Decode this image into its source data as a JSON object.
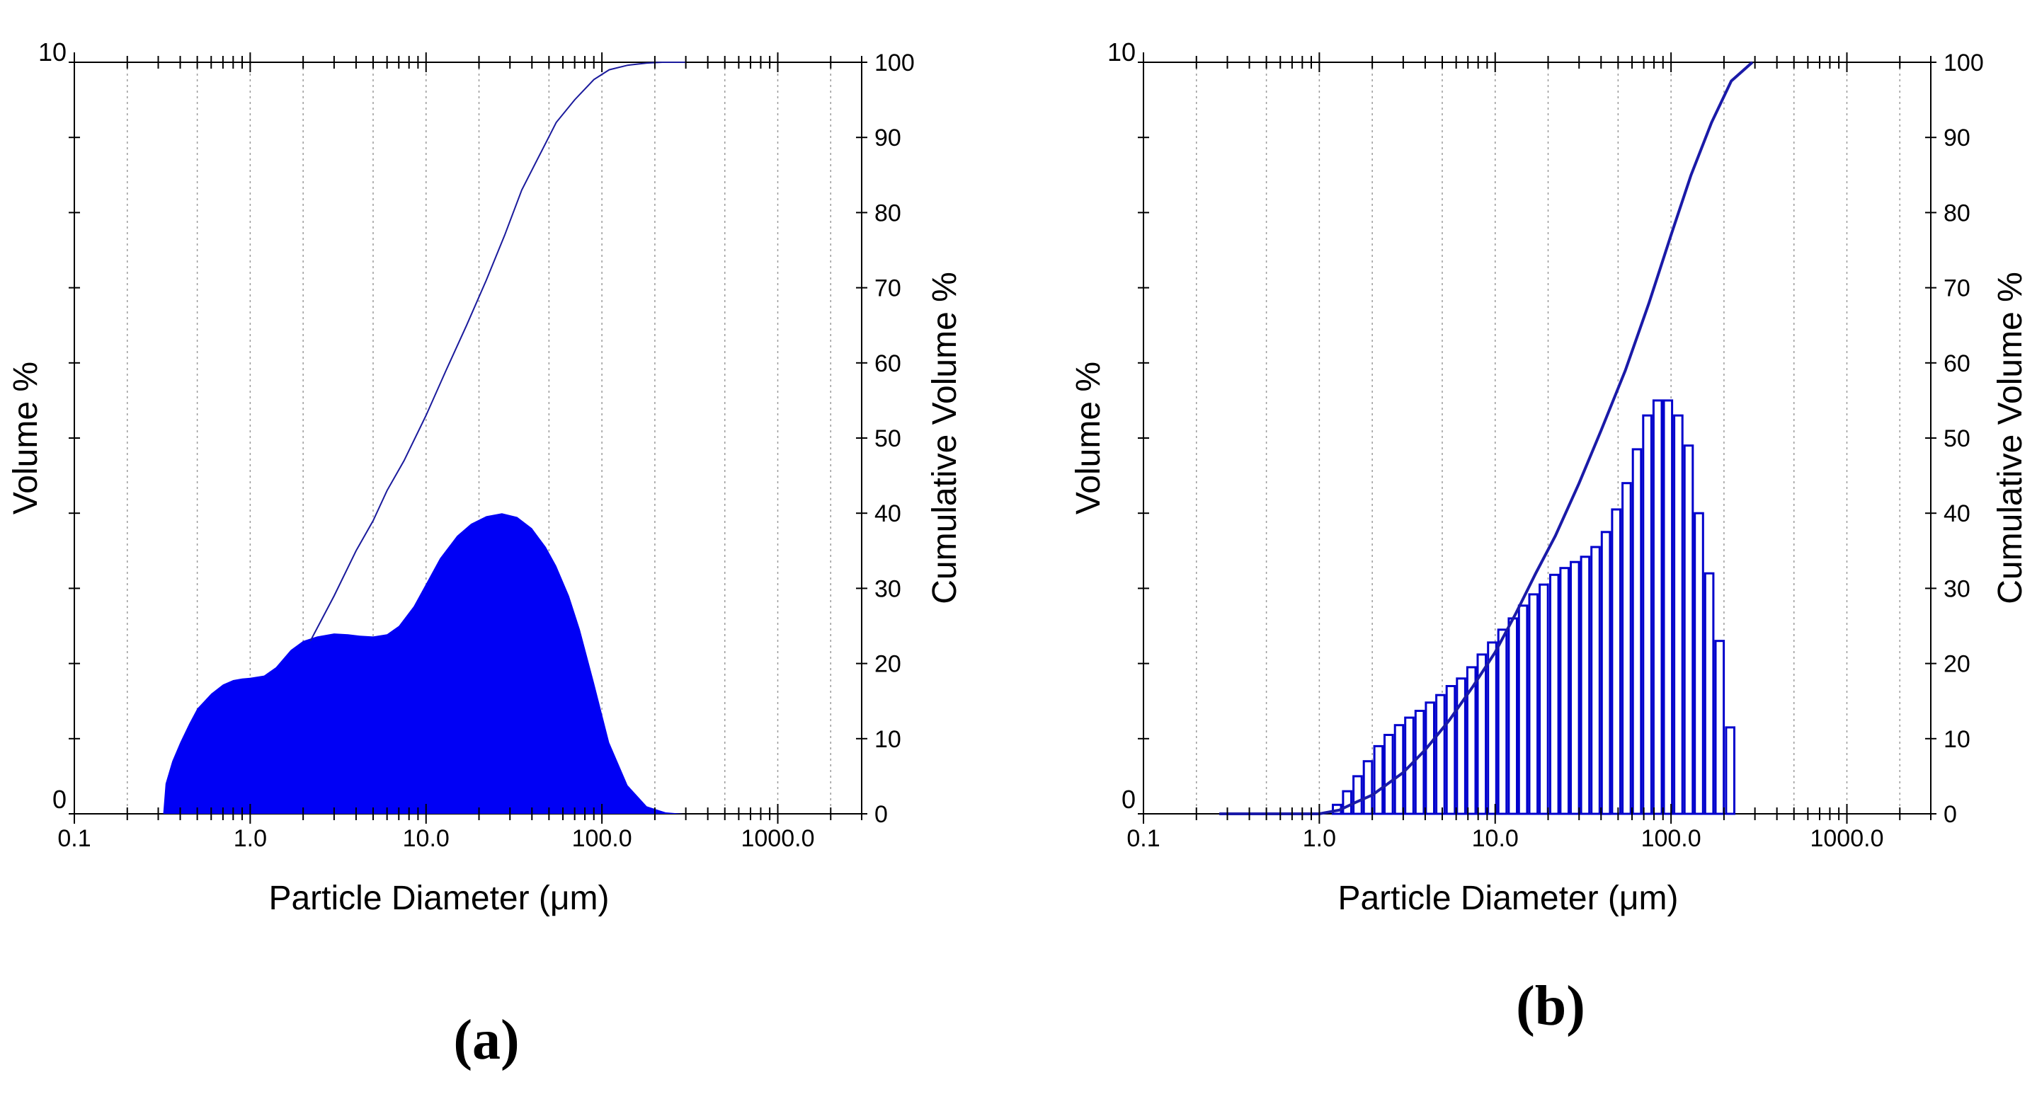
{
  "chart_data": [
    {
      "type": "area",
      "panel_label": "(a)",
      "xlabel": "Particle  Diameter (μm)",
      "ylabel": "Volume %",
      "y2label": "Cumulative Volume %",
      "x_scale": "log",
      "xlim": [
        0.1,
        3000
      ],
      "ylim": [
        0,
        10
      ],
      "y2lim": [
        0,
        100
      ],
      "x_ticklabels": [
        "0.1",
        "1.0",
        "10.0",
        "100.0",
        "1000.0"
      ],
      "y_ticklabels": [
        "0",
        "10"
      ],
      "y2_ticklabels": [
        "0",
        "10",
        "20",
        "30",
        "40",
        "50",
        "60",
        "70",
        "80",
        "90",
        "100"
      ],
      "grid": "vertical dotted",
      "colors": {
        "fill": "#0000f5",
        "line": "#1a1a9c"
      },
      "series": [
        {
          "style": "filled area",
          "x": [
            0.32,
            0.33,
            0.36,
            0.4,
            0.45,
            0.5,
            0.6,
            0.7,
            0.8,
            0.9,
            1.0,
            1.2,
            1.4,
            1.7,
            2.0,
            2.4,
            3.0,
            3.6,
            4.2,
            5.0,
            6.0,
            7.0,
            8.5,
            10.0,
            12.0,
            15.0,
            18.0,
            22.0,
            27.0,
            33.0,
            40.0,
            48.0,
            55.0,
            65.0,
            75.0,
            90.0,
            110.0,
            140.0,
            180.0,
            230.0,
            290.0
          ],
          "y": [
            0.0,
            0.4,
            0.7,
            0.95,
            1.2,
            1.4,
            1.6,
            1.72,
            1.78,
            1.8,
            1.81,
            1.84,
            1.95,
            2.18,
            2.3,
            2.36,
            2.4,
            2.39,
            2.37,
            2.36,
            2.39,
            2.5,
            2.76,
            3.06,
            3.4,
            3.7,
            3.86,
            3.96,
            4.0,
            3.95,
            3.8,
            3.55,
            3.3,
            2.9,
            2.45,
            1.75,
            0.95,
            0.38,
            0.1,
            0.02,
            0.0
          ]
        },
        {
          "style": "cumulative line",
          "x": [
            2.2,
            3.0,
            4.0,
            5.0,
            6.0,
            7.5,
            10.0,
            13.0,
            17.0,
            22.0,
            28.0,
            35.0,
            45.0,
            55.0,
            70.0,
            90.0,
            110.0,
            140.0,
            180.0,
            220.0,
            300.0
          ],
          "y": [
            23,
            29,
            35,
            39,
            43,
            47,
            53,
            59,
            65,
            71,
            77,
            83,
            88,
            92,
            95,
            97.7,
            99,
            99.6,
            99.9,
            100,
            100
          ]
        }
      ]
    },
    {
      "type": "bar",
      "panel_label": "(b)",
      "xlabel": "Particle  Diameter (μm)",
      "ylabel": "Volume %",
      "y2label": "Cumulative Volume %",
      "x_scale": "log",
      "xlim": [
        0.1,
        3000
      ],
      "ylim": [
        0,
        10
      ],
      "y2lim": [
        0,
        100
      ],
      "x_ticklabels": [
        "0.1",
        "1.0",
        "10.0",
        "100.0",
        "1000.0"
      ],
      "y_ticklabels": [
        "0",
        "10"
      ],
      "y2_ticklabels": [
        "0",
        "10",
        "20",
        "30",
        "40",
        "50",
        "60",
        "70",
        "80",
        "90",
        "100"
      ],
      "grid": "vertical dotted",
      "colors": {
        "bar_edge": "#0000cc",
        "line": "#1a1aa8"
      },
      "series": [
        {
          "style": "hollow bars",
          "x": [
            1.26,
            1.44,
            1.65,
            1.89,
            2.17,
            2.48,
            2.84,
            3.25,
            3.72,
            4.26,
            4.88,
            5.59,
            6.4,
            7.33,
            8.39,
            9.61,
            11.0,
            12.6,
            14.4,
            16.5,
            18.9,
            21.7,
            24.8,
            28.4,
            32.5,
            37.2,
            42.6,
            48.8,
            55.9,
            64.0,
            73.3,
            83.9,
            96.1,
            110.0,
            126.0,
            144.0,
            165.0,
            189.0,
            217.0,
            248.0,
            284.0
          ],
          "y": [
            0.12,
            0.3,
            0.5,
            0.7,
            0.9,
            1.05,
            1.18,
            1.28,
            1.37,
            1.48,
            1.58,
            1.7,
            1.8,
            1.95,
            2.12,
            2.28,
            2.45,
            2.6,
            2.77,
            2.92,
            3.05,
            3.18,
            3.27,
            3.35,
            3.42,
            3.55,
            3.75,
            4.05,
            4.4,
            4.85,
            5.3,
            5.5,
            5.5,
            5.3,
            4.9,
            4.0,
            3.2,
            2.3,
            1.15,
            0.0,
            0.0
          ]
        },
        {
          "style": "cumulative line",
          "x": [
            0.27,
            0.5,
            0.8,
            1.0,
            1.3,
            1.6,
            2.0,
            3.0,
            4.0,
            5.5,
            7.5,
            10.0,
            13.0,
            17.0,
            22.0,
            30.0,
            40.0,
            55.0,
            75.0,
            100.0,
            130.0,
            170.0,
            220.0,
            290.0
          ],
          "y": [
            0,
            0,
            0,
            0,
            0.5,
            1.5,
            2.5,
            5.5,
            8.5,
            12.5,
            17,
            21.5,
            26.5,
            32,
            37,
            44,
            51,
            59,
            68,
            77,
            85,
            92,
            97.5,
            100
          ]
        }
      ]
    }
  ]
}
